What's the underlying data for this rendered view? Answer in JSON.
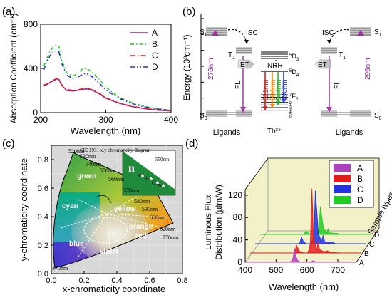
{
  "panels": {
    "a": "(a)",
    "b": "(b)",
    "c": "(c)",
    "d": "(d)"
  },
  "chart_data": [
    {
      "id": "a",
      "type": "line",
      "xlabel": "Wavelength (nm)",
      "ylabel": "Absorption Coefficient (cm⁻¹)",
      "xlim": [
        200,
        400
      ],
      "ylim": [
        0,
        800
      ],
      "xticks": [
        200,
        300,
        400
      ],
      "yticks": [
        0,
        400,
        800
      ],
      "legend_position": "top-right",
      "series": [
        {
          "name": "A",
          "color": "#9b1f8c",
          "dash": "none",
          "x": [
            205,
            210,
            215,
            220,
            225,
            228,
            232,
            240,
            250,
            260,
            265,
            270,
            280,
            290,
            300,
            320,
            340,
            360,
            380,
            400
          ],
          "y": [
            245,
            255,
            275,
            290,
            305,
            300,
            250,
            200,
            195,
            205,
            210,
            215,
            200,
            170,
            130,
            85,
            55,
            35,
            22,
            15
          ]
        },
        {
          "name": "B",
          "color": "#22cc22",
          "dash": "5,3,1.5,3",
          "x": [
            205,
            210,
            215,
            220,
            225,
            228,
            232,
            240,
            250,
            260,
            265,
            270,
            280,
            290,
            300,
            320,
            340,
            360,
            380,
            400
          ],
          "y": [
            420,
            500,
            560,
            600,
            610,
            600,
            480,
            360,
            330,
            370,
            400,
            400,
            360,
            300,
            230,
            140,
            90,
            55,
            35,
            22
          ]
        },
        {
          "name": "C",
          "color": "#e21d1d",
          "dash": "7,3,1.5,3",
          "x": [
            205,
            210,
            215,
            220,
            225,
            228,
            232,
            240,
            250,
            260,
            265,
            270,
            280,
            290,
            300,
            320,
            340,
            360,
            380,
            400
          ],
          "y": [
            250,
            260,
            280,
            295,
            310,
            305,
            255,
            210,
            200,
            210,
            218,
            222,
            205,
            175,
            135,
            88,
            58,
            37,
            24,
            16
          ]
        },
        {
          "name": "D",
          "color": "#2233bb",
          "dash": "6,3,1.5,3,1.5,3",
          "x": [
            205,
            210,
            215,
            220,
            225,
            228,
            232,
            240,
            250,
            260,
            265,
            270,
            280,
            290,
            300,
            320,
            340,
            360,
            380,
            400
          ],
          "y": [
            390,
            470,
            520,
            555,
            560,
            550,
            450,
            340,
            305,
            330,
            350,
            355,
            320,
            265,
            205,
            130,
            82,
            50,
            32,
            20
          ]
        }
      ]
    },
    {
      "id": "b",
      "type": "diagram",
      "ylabel": "Energy (10³cm⁻¹)",
      "yticks": [
        0,
        5,
        10,
        15,
        20,
        25,
        30
      ],
      "left_states": [
        "S",
        "T",
        "S"
      ],
      "left_labels": {
        "isc": "ISC",
        "et": "ET",
        "abs": "276nm",
        "fl": "FL",
        "ligands": "Ligands"
      },
      "right_labels": {
        "isc": "ISC",
        "et": "ET",
        "abs": "296nm",
        "fl": "FL",
        "ligands": "Ligands"
      },
      "ion": {
        "name": "Tb³⁺",
        "nrr": "NRR",
        "d3": "D",
        "d4": "D",
        "f": "F",
        "j_values": [
          "0",
          "1",
          "2",
          "3",
          "4",
          "5",
          "6"
        ]
      },
      "emissions": [
        {
          "label": "621nm",
          "color": "#e21d1d"
        },
        {
          "label": "584nm",
          "color": "#ff8800"
        },
        {
          "label": "544nm",
          "color": "#22bb22"
        },
        {
          "label": "490nm",
          "color": "#2233dd"
        }
      ]
    },
    {
      "id": "c",
      "type": "diagram",
      "title": "CIE 1931 x,y chromaticity diagram",
      "xlabel": "x-chromaticity coordinate",
      "ylabel": "y-chromaticity coordinate",
      "xlim": [
        0,
        0.8
      ],
      "ylim": [
        0,
        0.9
      ],
      "xticks": [
        0.0,
        0.2,
        0.4,
        0.6,
        0.8
      ],
      "yticks": [
        0.0,
        0.2,
        0.4,
        0.6,
        0.8
      ],
      "regions": [
        "green",
        "cyan",
        "yellow",
        "orange",
        "red",
        "blue",
        "violet"
      ],
      "wavelength_labels": [
        "470nm",
        "520nm",
        "530nm",
        "540nm",
        "550nm",
        "560nm",
        "570nm",
        "580nm",
        "590nm",
        "600nm",
        "620nm",
        "770nm"
      ],
      "inset": {
        "glyph": "n",
        "label": "550nm",
        "points": [
          "A",
          "B",
          "C",
          "D"
        ]
      }
    },
    {
      "id": "d",
      "type": "line",
      "xlabel": "Wavelength (nm)",
      "ylabel": "Luminous Flux Distribution (µlm/W)",
      "zlabel": "Sample types",
      "xlim": [
        400,
        760
      ],
      "ylim": [
        0,
        130
      ],
      "xticks": [
        400,
        500,
        600,
        700
      ],
      "yticks": [
        0,
        40,
        80,
        120
      ],
      "legend_position": "top-right",
      "series": [
        {
          "name": "A",
          "color": "#b040c0",
          "x": [
            400,
            540,
            550,
            555,
            560,
            565,
            570,
            580,
            600,
            615,
            620,
            625,
            640,
            700,
            760
          ],
          "y": [
            0,
            0,
            2,
            8,
            25,
            10,
            3,
            0,
            0,
            1,
            3,
            1,
            0,
            0,
            0
          ]
        },
        {
          "name": "B",
          "color": "#e21d1d",
          "x": [
            400,
            540,
            545,
            550,
            555,
            560,
            565,
            575,
            585,
            590,
            595,
            600,
            605,
            615,
            620,
            625,
            640,
            650,
            660,
            700,
            760
          ],
          "y": [
            0,
            0,
            3,
            14,
            8,
            3,
            2,
            0,
            0,
            5,
            18,
            115,
            30,
            5,
            20,
            6,
            2,
            4,
            1,
            0,
            0
          ]
        },
        {
          "name": "C",
          "color": "#2233dd",
          "x": [
            400,
            540,
            545,
            550,
            555,
            565,
            580,
            585,
            590,
            595,
            605,
            615,
            620,
            625,
            640,
            650,
            660,
            700,
            760
          ],
          "y": [
            0,
            0,
            2,
            12,
            5,
            0,
            0,
            4,
            14,
            95,
            18,
            4,
            15,
            4,
            2,
            3,
            0,
            0,
            0
          ]
        },
        {
          "name": "D",
          "color": "#22cc22",
          "x": [
            400,
            540,
            550,
            555,
            565,
            580,
            585,
            590,
            595,
            605,
            615,
            620,
            625,
            640,
            650,
            660,
            700,
            760
          ],
          "y": [
            0,
            0,
            6,
            3,
            0,
            0,
            3,
            8,
            50,
            12,
            3,
            10,
            3,
            2,
            2,
            0,
            0,
            0
          ]
        }
      ]
    }
  ]
}
